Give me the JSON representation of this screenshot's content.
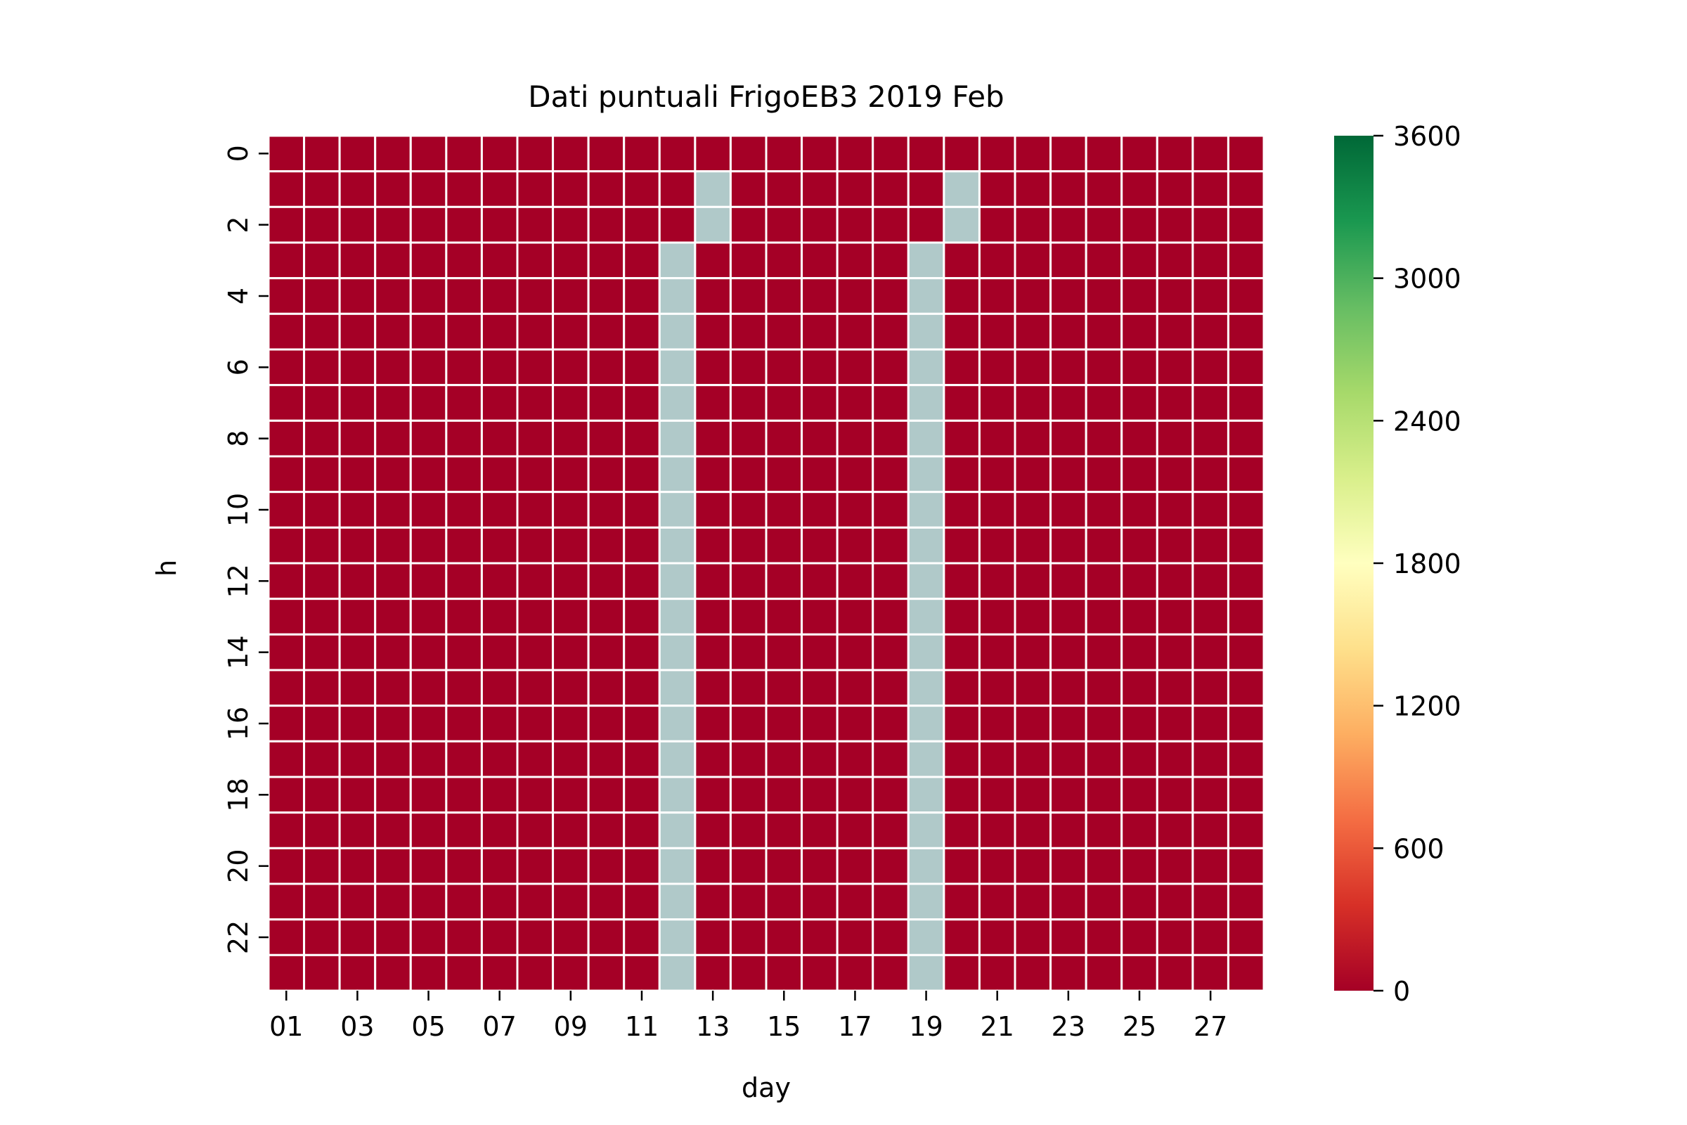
{
  "chart_data": {
    "type": "heatmap",
    "title": "Dati puntuali FrigoEB3 2019 Feb",
    "xlabel": "day",
    "ylabel": "h",
    "x_categories": [
      "01",
      "02",
      "03",
      "04",
      "05",
      "06",
      "07",
      "08",
      "09",
      "10",
      "11",
      "12",
      "13",
      "14",
      "15",
      "16",
      "17",
      "18",
      "19",
      "20",
      "21",
      "22",
      "23",
      "24",
      "25",
      "26",
      "27",
      "28"
    ],
    "x_tick_labels": [
      "01",
      "03",
      "05",
      "07",
      "09",
      "11",
      "13",
      "15",
      "17",
      "19",
      "21",
      "23",
      "25",
      "27"
    ],
    "y_categories": [
      0,
      1,
      2,
      3,
      4,
      5,
      6,
      7,
      8,
      9,
      10,
      11,
      12,
      13,
      14,
      15,
      16,
      17,
      18,
      19,
      20,
      21,
      22,
      23
    ],
    "y_tick_labels": [
      "0",
      "2",
      "4",
      "6",
      "8",
      "10",
      "12",
      "14",
      "16",
      "18",
      "20",
      "22"
    ],
    "default_value": 0,
    "missing_cells": [
      {
        "day": "12",
        "hours": [
          3,
          4,
          5,
          6,
          7,
          8,
          9,
          10,
          11,
          12,
          13,
          14,
          15,
          16,
          17,
          18,
          19,
          20,
          21,
          22,
          23
        ]
      },
      {
        "day": "13",
        "hours": [
          1,
          2
        ]
      },
      {
        "day": "19",
        "hours": [
          3,
          4,
          5,
          6,
          7,
          8,
          9,
          10,
          11,
          12,
          13,
          14,
          15,
          16,
          17,
          18,
          19,
          20,
          21,
          22,
          23
        ]
      },
      {
        "day": "20",
        "hours": [
          1,
          2
        ]
      }
    ],
    "value_range": [
      0,
      3600
    ],
    "colormap": "RdYlGn",
    "colorbar_ticks": [
      "0",
      "600",
      "1200",
      "1800",
      "2400",
      "3000",
      "3600"
    ],
    "colors": {
      "low": "#a50026",
      "missing": "#b0c9c9",
      "grid_line": "#ffffff",
      "colorbar_stops": [
        "#a50026",
        "#d73027",
        "#f46d43",
        "#fdae61",
        "#fee08b",
        "#ffffbf",
        "#d9ef8b",
        "#a6d96a",
        "#66bd63",
        "#1a9850",
        "#006837"
      ]
    }
  }
}
